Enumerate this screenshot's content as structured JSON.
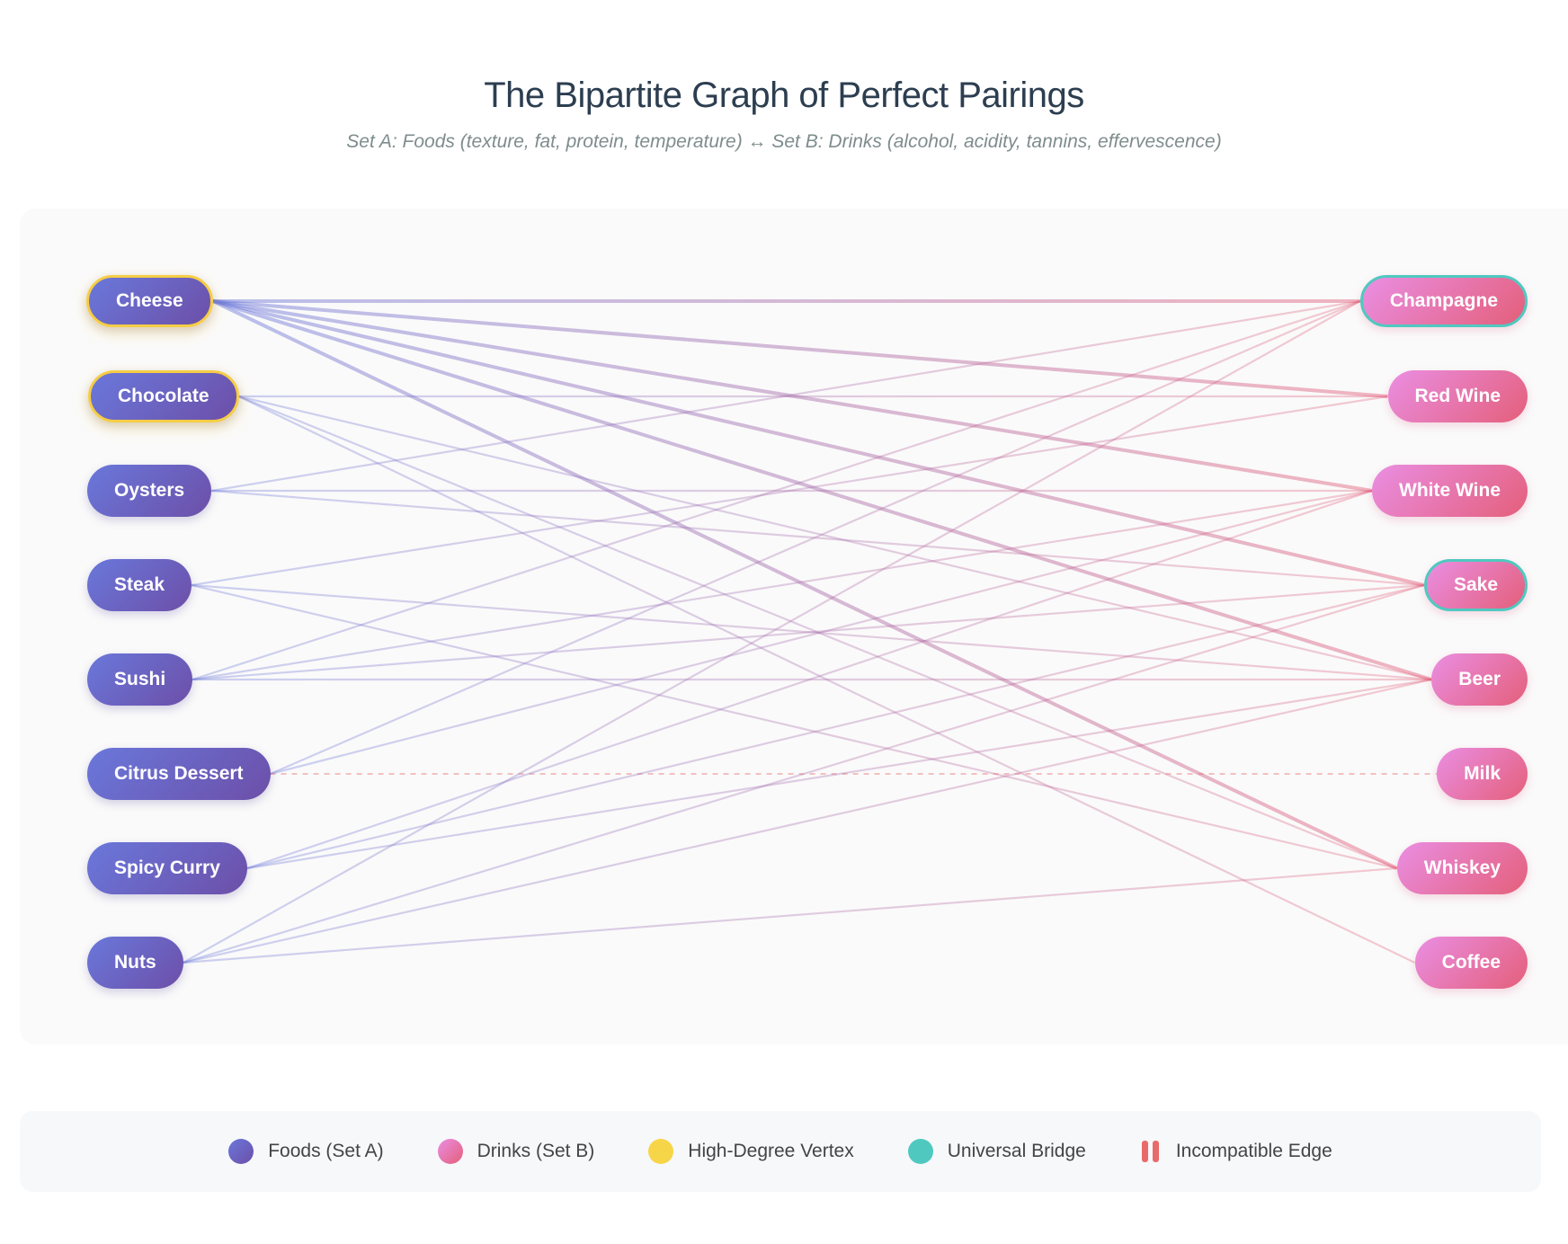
{
  "title": "The Bipartite Graph of Perfect Pairings",
  "subtitle": "Set A: Foods (texture, fat, protein, temperature) ↔ Set B: Drinks (alcohol, acidity, tannins, effervescence)",
  "foods": [
    {
      "id": "cheese",
      "label": "Cheese",
      "high_degree": true
    },
    {
      "id": "chocolate",
      "label": "Chocolate",
      "high_degree": true
    },
    {
      "id": "oysters",
      "label": "Oysters"
    },
    {
      "id": "steak",
      "label": "Steak"
    },
    {
      "id": "sushi",
      "label": "Sushi"
    },
    {
      "id": "citrus",
      "label": "Citrus Dessert"
    },
    {
      "id": "curry",
      "label": "Spicy Curry"
    },
    {
      "id": "nuts",
      "label": "Nuts"
    }
  ],
  "drinks": [
    {
      "id": "champagne",
      "label": "Champagne",
      "universal_bridge": true
    },
    {
      "id": "redwine",
      "label": "Red Wine"
    },
    {
      "id": "whitewine",
      "label": "White Wine"
    },
    {
      "id": "sake",
      "label": "Sake",
      "universal_bridge": true
    },
    {
      "id": "beer",
      "label": "Beer"
    },
    {
      "id": "milk",
      "label": "Milk"
    },
    {
      "id": "whiskey",
      "label": "Whiskey"
    },
    {
      "id": "coffee",
      "label": "Coffee"
    }
  ],
  "edges": [
    {
      "from": "cheese",
      "to": "champagne",
      "strength": "strong"
    },
    {
      "from": "cheese",
      "to": "redwine",
      "strength": "strong"
    },
    {
      "from": "cheese",
      "to": "whitewine",
      "strength": "strong"
    },
    {
      "from": "cheese",
      "to": "sake",
      "strength": "strong"
    },
    {
      "from": "cheese",
      "to": "beer",
      "strength": "strong"
    },
    {
      "from": "cheese",
      "to": "whiskey",
      "strength": "strong"
    },
    {
      "from": "chocolate",
      "to": "redwine",
      "strength": "normal"
    },
    {
      "from": "chocolate",
      "to": "beer",
      "strength": "normal"
    },
    {
      "from": "chocolate",
      "to": "whiskey",
      "strength": "normal"
    },
    {
      "from": "chocolate",
      "to": "coffee",
      "strength": "normal"
    },
    {
      "from": "oysters",
      "to": "champagne",
      "strength": "normal"
    },
    {
      "from": "oysters",
      "to": "whitewine",
      "strength": "normal"
    },
    {
      "from": "oysters",
      "to": "sake",
      "strength": "normal"
    },
    {
      "from": "steak",
      "to": "redwine",
      "strength": "normal"
    },
    {
      "from": "steak",
      "to": "beer",
      "strength": "normal"
    },
    {
      "from": "steak",
      "to": "whiskey",
      "strength": "normal"
    },
    {
      "from": "sushi",
      "to": "champagne",
      "strength": "normal"
    },
    {
      "from": "sushi",
      "to": "whitewine",
      "strength": "normal"
    },
    {
      "from": "sushi",
      "to": "sake",
      "strength": "normal"
    },
    {
      "from": "sushi",
      "to": "beer",
      "strength": "normal"
    },
    {
      "from": "citrus",
      "to": "champagne",
      "strength": "normal"
    },
    {
      "from": "citrus",
      "to": "whitewine",
      "strength": "normal"
    },
    {
      "from": "citrus",
      "to": "milk",
      "strength": "incompatible"
    },
    {
      "from": "curry",
      "to": "whitewine",
      "strength": "normal"
    },
    {
      "from": "curry",
      "to": "sake",
      "strength": "normal"
    },
    {
      "from": "curry",
      "to": "beer",
      "strength": "normal"
    },
    {
      "from": "nuts",
      "to": "champagne",
      "strength": "normal"
    },
    {
      "from": "nuts",
      "to": "sake",
      "strength": "normal"
    },
    {
      "from": "nuts",
      "to": "beer",
      "strength": "normal"
    },
    {
      "from": "nuts",
      "to": "whiskey",
      "strength": "normal"
    }
  ],
  "legend": {
    "foods": "Foods (Set A)",
    "drinks": "Drinks (Set B)",
    "high_degree": "High-Degree Vertex",
    "bridge": "Universal Bridge",
    "incompatible": "Incompatible Edge"
  },
  "colors": {
    "food_start": "#6a78db",
    "food_end": "#6c4fa8",
    "drink_start": "#ea8ee3",
    "drink_end": "#e45f7a",
    "high_degree": "#f5cd45",
    "bridge": "#4fc9c0",
    "incompatible": "#e96a6a"
  }
}
